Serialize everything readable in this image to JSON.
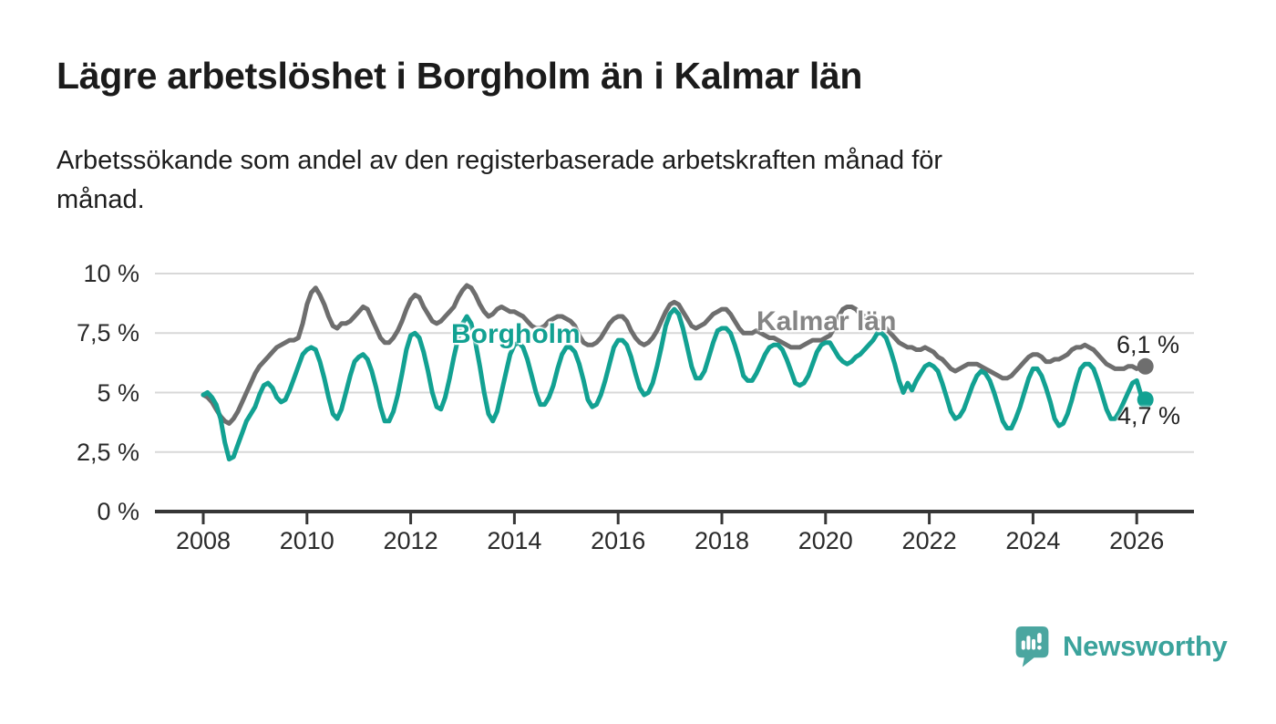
{
  "header": {
    "title": "Lägre arbetslöshet i Borgholm än i Kalmar län",
    "subtitle_lines": [
      "Arbetssökande som andel av den registerbaserade arbetskraften månad för",
      "månad."
    ]
  },
  "colors": {
    "borgholm": "#12A192",
    "kalmar": "#6E6E6E",
    "kalmar_label": "#858585",
    "grid": "#D8D8D8",
    "axis": "#363636",
    "brand": "#3BA39C",
    "brand_icon": "#4BA6A0"
  },
  "chart_data": {
    "type": "line",
    "unit": "% av registerbaserad arbetskraft",
    "frequency": "monthly",
    "x_start": "2008-01",
    "x_end": "2026-03",
    "ylim": [
      0,
      10
    ],
    "grid": true,
    "legend_position": "inline-labels",
    "y_ticks": {
      "values": [
        0,
        2.5,
        5,
        7.5,
        10
      ],
      "labels": [
        "0 %",
        "2,5 %",
        "5 %",
        "7,5 %",
        "10 %"
      ]
    },
    "x_ticks": [
      "2008",
      "2010",
      "2012",
      "2014",
      "2016",
      "2018",
      "2020",
      "2022",
      "2024",
      "2026"
    ],
    "series": [
      {
        "id": "kalmar",
        "name": "Kalmar län",
        "end_label": "6,1 %",
        "end_value": 6.1,
        "values": [
          4.9,
          4.8,
          4.6,
          4.3,
          4.0,
          3.8,
          3.7,
          3.9,
          4.2,
          4.6,
          5.0,
          5.4,
          5.8,
          6.1,
          6.3,
          6.5,
          6.7,
          6.9,
          7.0,
          7.1,
          7.2,
          7.2,
          7.3,
          7.9,
          8.7,
          9.2,
          9.4,
          9.1,
          8.7,
          8.2,
          7.8,
          7.7,
          7.9,
          7.9,
          8.0,
          8.2,
          8.4,
          8.6,
          8.5,
          8.1,
          7.7,
          7.3,
          7.1,
          7.1,
          7.3,
          7.6,
          8.0,
          8.5,
          8.9,
          9.1,
          9.0,
          8.6,
          8.3,
          8.0,
          7.9,
          8.0,
          8.2,
          8.4,
          8.6,
          9.0,
          9.3,
          9.5,
          9.4,
          9.1,
          8.7,
          8.4,
          8.2,
          8.3,
          8.5,
          8.6,
          8.5,
          8.4,
          8.4,
          8.3,
          8.2,
          8.0,
          7.8,
          7.7,
          7.7,
          7.8,
          8.0,
          8.1,
          8.2,
          8.2,
          8.1,
          8.0,
          7.8,
          7.4,
          7.1,
          7.0,
          7.0,
          7.1,
          7.3,
          7.6,
          7.9,
          8.1,
          8.2,
          8.2,
          8.0,
          7.6,
          7.3,
          7.1,
          7.0,
          7.1,
          7.3,
          7.6,
          8.0,
          8.4,
          8.7,
          8.8,
          8.7,
          8.4,
          8.1,
          7.8,
          7.7,
          7.8,
          7.9,
          8.1,
          8.3,
          8.4,
          8.5,
          8.5,
          8.3,
          8.0,
          7.7,
          7.5,
          7.5,
          7.5,
          7.6,
          7.5,
          7.4,
          7.3,
          7.3,
          7.2,
          7.1,
          7.0,
          6.9,
          6.9,
          6.9,
          7.0,
          7.1,
          7.2,
          7.2,
          7.2,
          7.3,
          7.4,
          7.7,
          8.2,
          8.5,
          8.6,
          8.6,
          8.5,
          8.3,
          8.2,
          8.1,
          8.0,
          8.0,
          7.9,
          7.7,
          7.5,
          7.3,
          7.1,
          7.0,
          6.9,
          6.9,
          6.8,
          6.8,
          6.9,
          6.8,
          6.7,
          6.5,
          6.4,
          6.2,
          6.0,
          5.9,
          6.0,
          6.1,
          6.2,
          6.2,
          6.2,
          6.1,
          6.0,
          5.9,
          5.8,
          5.7,
          5.6,
          5.6,
          5.7,
          5.9,
          6.1,
          6.3,
          6.5,
          6.6,
          6.6,
          6.5,
          6.3,
          6.3,
          6.4,
          6.4,
          6.5,
          6.6,
          6.8,
          6.9,
          6.9,
          7.0,
          6.9,
          6.8,
          6.6,
          6.4,
          6.2,
          6.1,
          6.0,
          6.0,
          6.0,
          6.1,
          6.1,
          6.0,
          6.1,
          6.1
        ]
      },
      {
        "id": "borgholm",
        "name": "Borgholm",
        "end_label": "4,7 %",
        "end_value": 4.7,
        "values": [
          4.9,
          5.0,
          4.8,
          4.5,
          3.9,
          2.9,
          2.2,
          2.3,
          2.8,
          3.3,
          3.8,
          4.1,
          4.4,
          4.9,
          5.3,
          5.4,
          5.2,
          4.8,
          4.6,
          4.7,
          5.1,
          5.6,
          6.1,
          6.6,
          6.8,
          6.9,
          6.8,
          6.3,
          5.6,
          4.8,
          4.1,
          3.9,
          4.3,
          5.0,
          5.7,
          6.3,
          6.5,
          6.6,
          6.4,
          5.9,
          5.2,
          4.4,
          3.8,
          3.8,
          4.2,
          4.9,
          5.8,
          6.8,
          7.4,
          7.5,
          7.3,
          6.7,
          5.9,
          5.0,
          4.4,
          4.3,
          4.8,
          5.6,
          6.5,
          7.3,
          7.9,
          8.2,
          7.9,
          7.1,
          6.1,
          5.0,
          4.1,
          3.8,
          4.2,
          5.0,
          5.8,
          6.6,
          7.0,
          7.1,
          6.9,
          6.4,
          5.7,
          5.0,
          4.5,
          4.5,
          4.8,
          5.3,
          6.0,
          6.6,
          6.9,
          6.9,
          6.7,
          6.2,
          5.5,
          4.7,
          4.4,
          4.5,
          4.9,
          5.5,
          6.2,
          6.9,
          7.2,
          7.2,
          7.0,
          6.5,
          5.8,
          5.2,
          4.9,
          5.0,
          5.4,
          6.1,
          6.9,
          7.8,
          8.3,
          8.5,
          8.3,
          7.7,
          6.9,
          6.1,
          5.6,
          5.6,
          5.9,
          6.5,
          7.1,
          7.6,
          7.7,
          7.7,
          7.5,
          7.0,
          6.4,
          5.7,
          5.5,
          5.5,
          5.8,
          6.2,
          6.6,
          6.9,
          7.0,
          7.0,
          6.8,
          6.4,
          5.9,
          5.4,
          5.3,
          5.4,
          5.7,
          6.2,
          6.7,
          7.0,
          7.1,
          7.1,
          6.8,
          6.5,
          6.3,
          6.2,
          6.3,
          6.5,
          6.6,
          6.8,
          7.0,
          7.2,
          7.5,
          7.5,
          7.3,
          6.8,
          6.2,
          5.5,
          5.0,
          5.4,
          5.1,
          5.5,
          5.8,
          6.1,
          6.2,
          6.1,
          5.9,
          5.4,
          4.8,
          4.2,
          3.9,
          4.0,
          4.3,
          4.8,
          5.3,
          5.7,
          5.9,
          5.8,
          5.5,
          5.0,
          4.4,
          3.8,
          3.5,
          3.5,
          3.9,
          4.4,
          5.0,
          5.6,
          6.0,
          6.0,
          5.7,
          5.2,
          4.6,
          3.9,
          3.6,
          3.7,
          4.1,
          4.7,
          5.4,
          6.0,
          6.2,
          6.2,
          6.0,
          5.5,
          4.9,
          4.3,
          3.9,
          3.9,
          4.2,
          4.6,
          5.0,
          5.4,
          5.5,
          4.9,
          4.7
        ]
      }
    ]
  },
  "footer": {
    "brand": "Newsworthy"
  }
}
